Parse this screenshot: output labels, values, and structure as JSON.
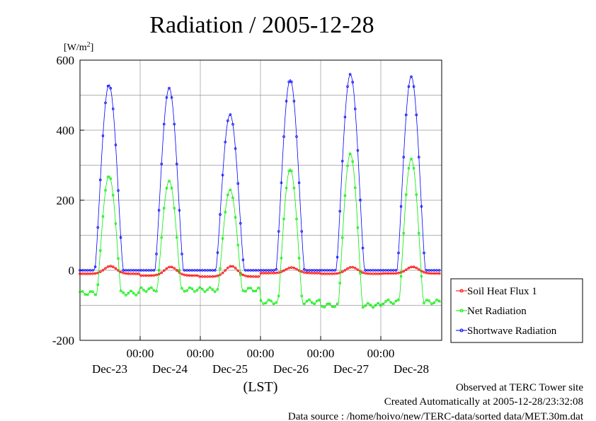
{
  "chart_data": {
    "type": "line",
    "title": "Radiation / 2005-12-28",
    "ylabel_unit": "[W/m",
    "ylabel_unit_sup": "2",
    "ylabel_unit_close": "]",
    "xlabel": "(LST)",
    "ylim": [
      -200,
      600
    ],
    "yticks": [
      -200,
      0,
      200,
      400,
      600
    ],
    "ytick_labels": [
      "-200",
      "0",
      "200",
      "400",
      "600"
    ],
    "x_days": [
      "Dec-23",
      "Dec-24",
      "Dec-25",
      "Dec-26",
      "Dec-27",
      "Dec-28"
    ],
    "x_time_label": "00:00",
    "grid": true,
    "legend_position": "right",
    "series": [
      {
        "name": "Soil Heat Flux 1",
        "color": "#ff0000",
        "day_shape": "soil",
        "peaks": [
          12,
          10,
          12,
          8,
          9,
          10
        ],
        "night": [
          -10,
          -15,
          -18,
          -8,
          -10,
          -9
        ]
      },
      {
        "name": "Net Radiation",
        "color": "#00ee00",
        "day_shape": "net",
        "peaks": [
          270,
          255,
          230,
          290,
          333,
          318
        ],
        "night": [
          -65,
          -55,
          -55,
          -90,
          -100,
          -90
        ]
      },
      {
        "name": "Shortwave Radiation",
        "color": "#0000ff",
        "day_shape": "short",
        "peaks": [
          530,
          520,
          445,
          545,
          560,
          553
        ],
        "night": [
          0,
          0,
          0,
          0,
          0,
          0
        ]
      }
    ]
  },
  "footer": {
    "line1": "Observed at TERC Tower site",
    "line2": "Created Automatically at 2005-12-28/23:32:08",
    "line3": "Data source : /home/hoivo/new/TERC-data/sorted  data/MET.30m.dat"
  }
}
